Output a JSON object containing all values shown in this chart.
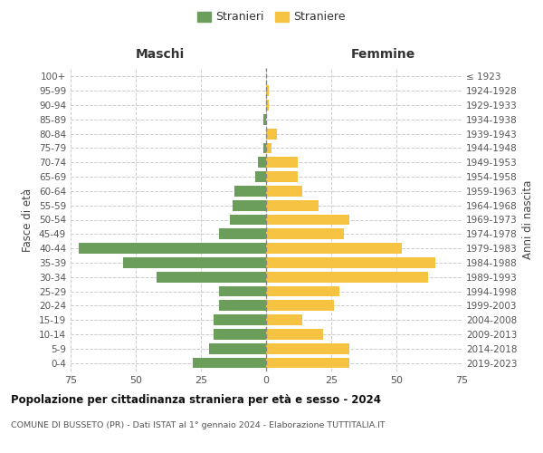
{
  "age_groups": [
    "0-4",
    "5-9",
    "10-14",
    "15-19",
    "20-24",
    "25-29",
    "30-34",
    "35-39",
    "40-44",
    "45-49",
    "50-54",
    "55-59",
    "60-64",
    "65-69",
    "70-74",
    "75-79",
    "80-84",
    "85-89",
    "90-94",
    "95-99",
    "100+"
  ],
  "birth_years": [
    "2019-2023",
    "2014-2018",
    "2009-2013",
    "2004-2008",
    "1999-2003",
    "1994-1998",
    "1989-1993",
    "1984-1988",
    "1979-1983",
    "1974-1978",
    "1969-1973",
    "1964-1968",
    "1959-1963",
    "1954-1958",
    "1949-1953",
    "1944-1948",
    "1939-1943",
    "1934-1938",
    "1929-1933",
    "1924-1928",
    "≤ 1923"
  ],
  "maschi": [
    28,
    22,
    20,
    20,
    18,
    18,
    42,
    55,
    72,
    18,
    14,
    13,
    12,
    4,
    3,
    1,
    0,
    1,
    0,
    0,
    0
  ],
  "femmine": [
    32,
    32,
    22,
    14,
    26,
    28,
    62,
    65,
    52,
    30,
    32,
    20,
    14,
    12,
    12,
    2,
    4,
    0,
    1,
    1,
    0
  ],
  "maschi_color": "#6a9e5a",
  "femmine_color": "#f5c242",
  "background_color": "#ffffff",
  "grid_color": "#cccccc",
  "title": "Popolazione per cittadinanza straniera per età e sesso - 2024",
  "subtitle": "COMUNE DI BUSSETO (PR) - Dati ISTAT al 1° gennaio 2024 - Elaborazione TUTTITALIA.IT",
  "xlabel_left": "Maschi",
  "xlabel_right": "Femmine",
  "ylabel_left": "Fasce di età",
  "ylabel_right": "Anni di nascita",
  "legend_stranieri": "Stranieri",
  "legend_straniere": "Straniere",
  "xlim": 75,
  "xtick_vals": [
    -75,
    -50,
    -25,
    0,
    25,
    50,
    75
  ],
  "xtick_labels": [
    "75",
    "50",
    "25",
    "0",
    "25",
    "50",
    "75"
  ]
}
